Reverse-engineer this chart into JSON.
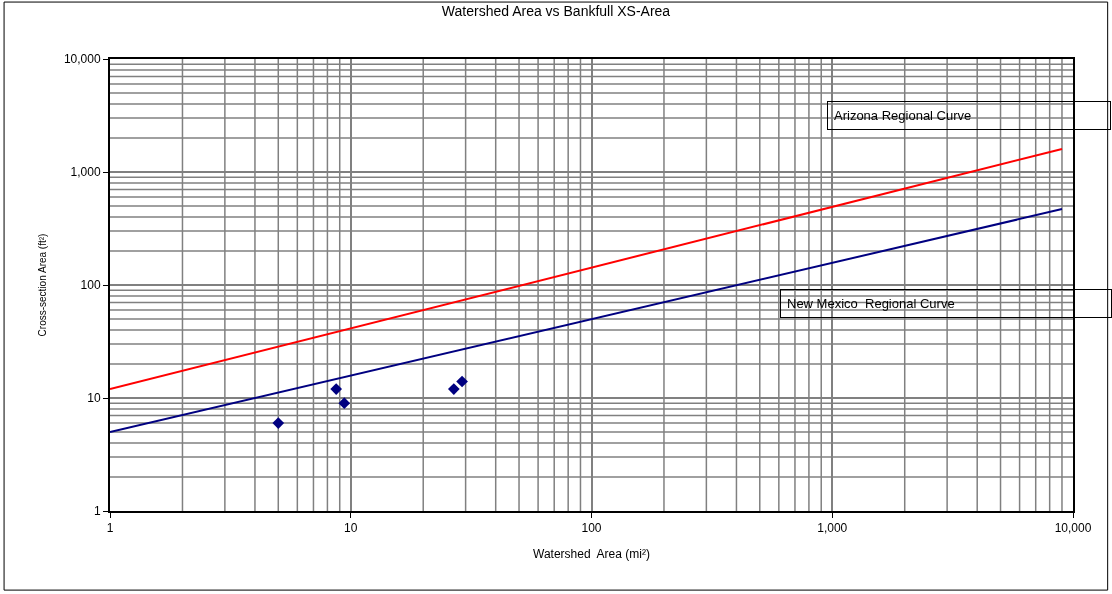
{
  "chart_data": {
    "type": "scatter",
    "title": "Watershed Area vs Bankfull XS-Area",
    "xlabel": "Watershed  Area (mi²)",
    "ylabel": "Cross-section Area (ft²)",
    "log": "xy",
    "grid": true,
    "xlim": [
      1,
      10000
    ],
    "ylim": [
      1,
      10000
    ],
    "xticks": [
      1,
      10,
      100,
      {
        "value": 1000,
        "label": "1,000"
      },
      {
        "value": 10000,
        "label": "10,000"
      }
    ],
    "yticks": [
      1,
      10,
      100,
      {
        "value": 1000,
        "label": "1,000"
      },
      {
        "value": 10000,
        "label": "10,000"
      }
    ],
    "annotations": [
      "Arizona Regional Curve",
      "New Mexico  Regional Curve"
    ],
    "series": [
      {
        "marker": "diamond",
        "color": "#000080",
        "x": [
          5,
          8.7,
          9.4,
          26.8,
          29
        ],
        "values": [
          6,
          12,
          9,
          12,
          14
        ]
      },
      {
        "type": "line",
        "color": "#ff0000",
        "x": [
          1,
          9000
        ],
        "values": [
          12,
          1600
        ]
      },
      {
        "type": "line",
        "color": "#000080",
        "x": [
          1,
          9000
        ],
        "values": [
          5,
          470
        ]
      }
    ]
  }
}
